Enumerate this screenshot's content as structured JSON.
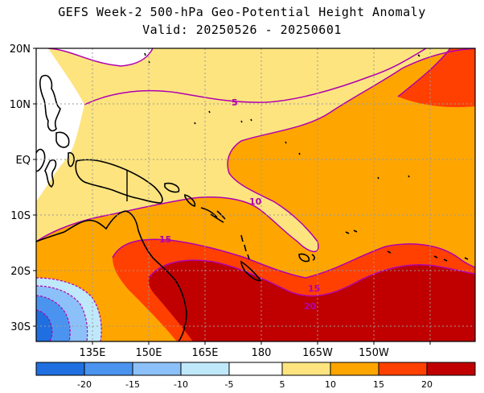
{
  "title": {
    "line1": "GEFS Week-2 500-hPa Geo-Potential Height Anomaly",
    "line2": "Valid: 20250526 - 20250601"
  },
  "map": {
    "lat_labels": [
      "20N",
      "10N",
      "EQ",
      "10S",
      "20S",
      "30S"
    ],
    "lon_labels": [
      "135E",
      "150E",
      "165E",
      "180",
      "165W",
      "150W"
    ],
    "contour_labels": [
      "5",
      "10",
      "15",
      "15",
      "20"
    ]
  },
  "colorbar": {
    "ticks": [
      "-20",
      "-15",
      "-10",
      "-5",
      "5",
      "10",
      "15",
      "20"
    ],
    "colors": [
      "#1f6fe0",
      "#4a94f0",
      "#8cc0f8",
      "#bfe8fb",
      "#ffffff",
      "#fde47f",
      "#ffa500",
      "#ff4000",
      "#c00000"
    ]
  },
  "colors": {
    "level_5_10": "#fde47f",
    "level_10_15": "#ffa500",
    "level_15_20": "#ff4000",
    "level_20_plus": "#c00000",
    "contour_line": "#b000b0",
    "land": "#000000"
  }
}
